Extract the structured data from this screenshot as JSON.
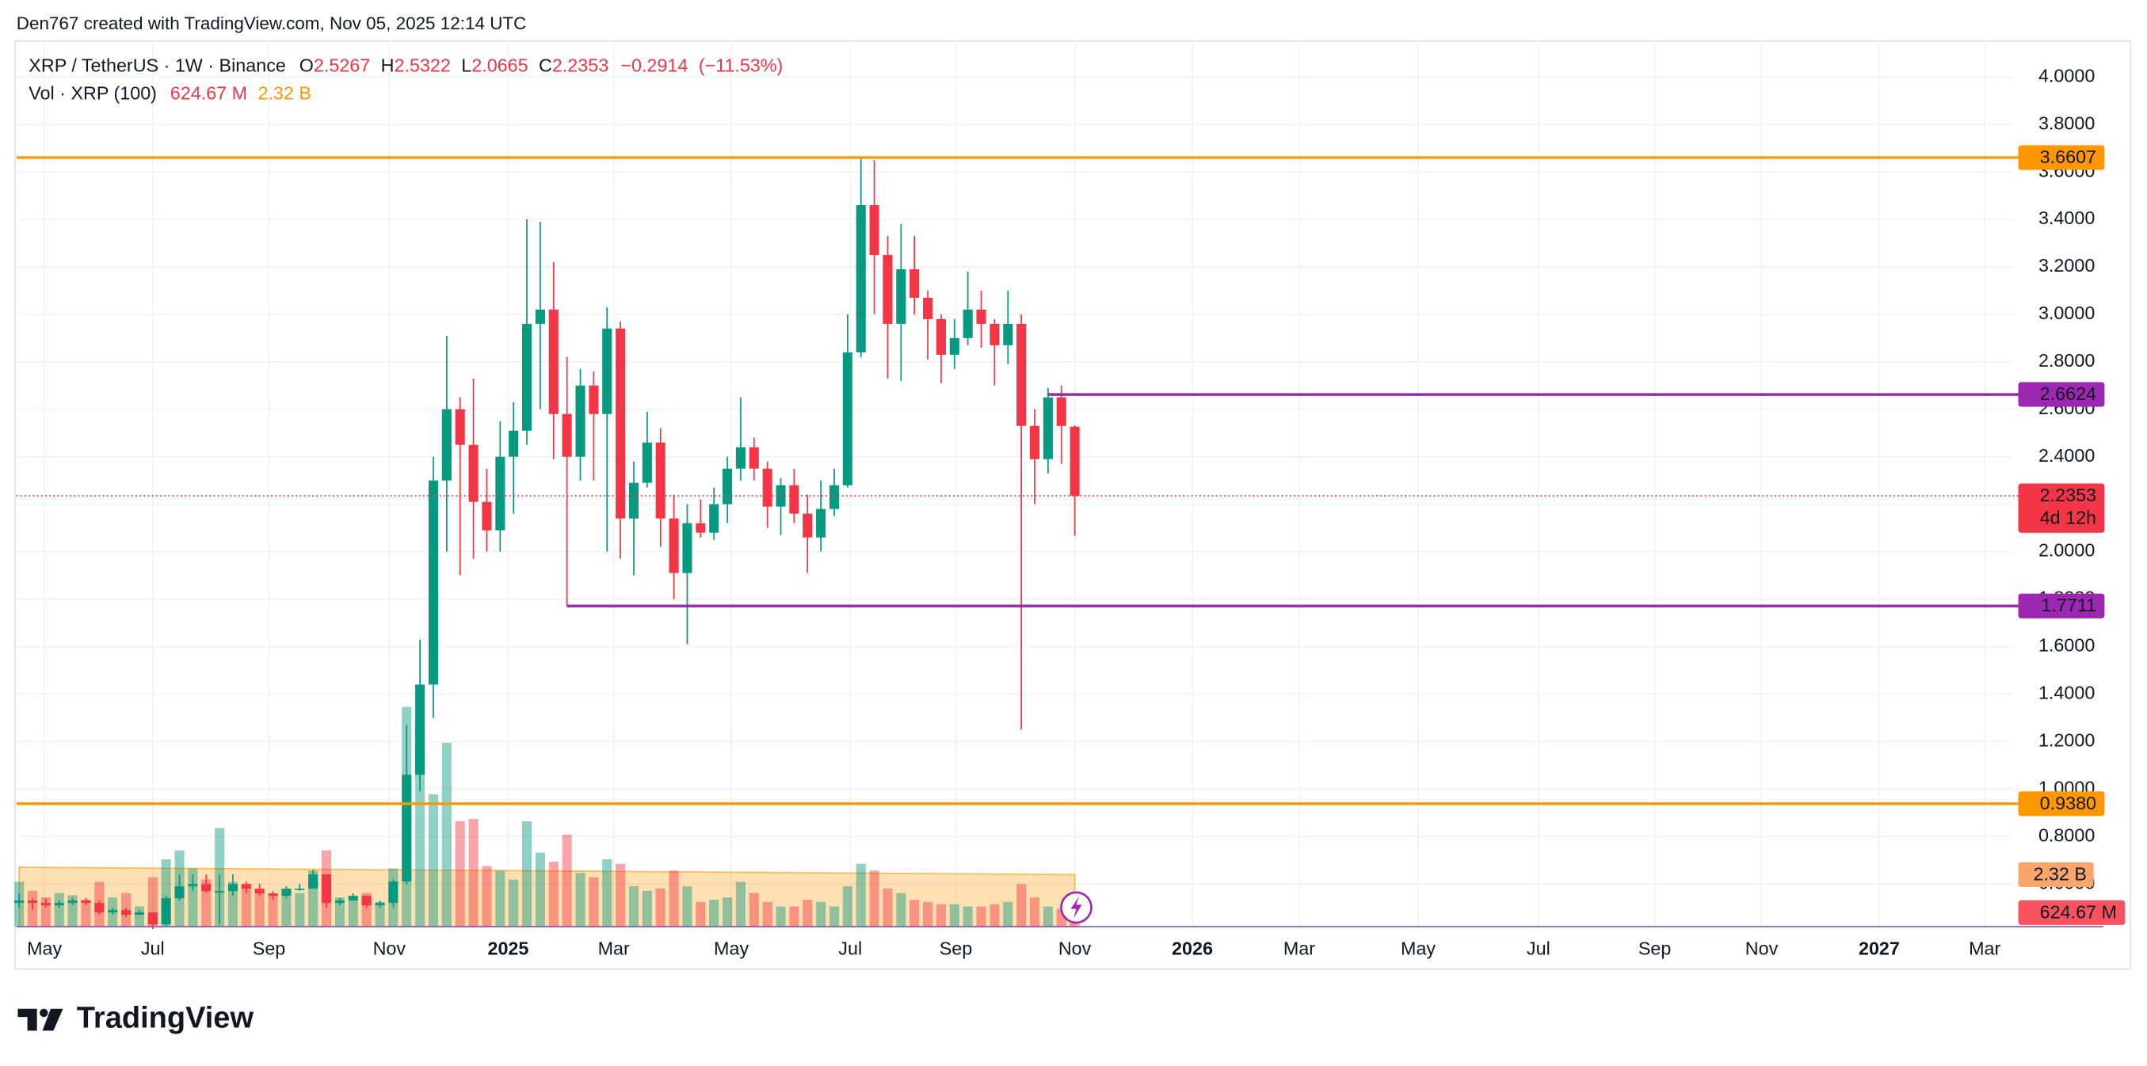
{
  "header": "Den767 created with TradingView.com, Nov 05, 2025 12:14 UTC",
  "brand": "TradingView",
  "chart_data": {
    "type": "candlestick",
    "title": "XRP / TetherUS · 1W · Binance",
    "ohlc_keys": [
      "O",
      "H",
      "L",
      "C"
    ],
    "change": {
      "value": -0.2914,
      "label": "−0.2914"
    },
    "change_pct": {
      "value": -11.53,
      "label": "(−11.53%)"
    },
    "countdown": "4d 12h",
    "up_color": "#089981",
    "down_color": "#f23645",
    "xlim": [
      -0.2,
      149.2
    ],
    "xticks": [
      {
        "value": 1.9,
        "label": "May"
      },
      {
        "value": 10,
        "label": "Jul"
      },
      {
        "value": 18.7,
        "label": "Sep"
      },
      {
        "value": 27.7,
        "label": "Nov"
      },
      {
        "value": 36.6,
        "label": "2025"
      },
      {
        "value": 44.5,
        "label": "Mar"
      },
      {
        "value": 53.3,
        "label": "May"
      },
      {
        "value": 62.2,
        "label": "Jul"
      },
      {
        "value": 70.1,
        "label": "Sep"
      },
      {
        "value": 79,
        "label": "Nov"
      },
      {
        "value": 87.8,
        "label": "2026"
      },
      {
        "value": 95.8,
        "label": "Mar"
      },
      {
        "value": 104.7,
        "label": "May"
      },
      {
        "value": 113.7,
        "label": "Jul"
      },
      {
        "value": 122.4,
        "label": "Sep"
      },
      {
        "value": 130.4,
        "label": "Nov"
      },
      {
        "value": 139.2,
        "label": "2027"
      },
      {
        "value": 147.1,
        "label": "Mar"
      }
    ],
    "ylim": [
      0.42,
      4.14
    ],
    "yticks": [
      {
        "value": 4,
        "label": "4.0000"
      },
      {
        "value": 3.8,
        "label": "3.8000"
      },
      {
        "value": 3.6,
        "label": "3.6000"
      },
      {
        "value": 3.4,
        "label": "3.4000"
      },
      {
        "value": 3.2,
        "label": "3.2000"
      },
      {
        "value": 3,
        "label": "3.0000"
      },
      {
        "value": 2.8,
        "label": "2.8000"
      },
      {
        "value": 2.6,
        "label": "2.6000"
      },
      {
        "value": 2.4,
        "label": "2.4000"
      },
      {
        "value": 2.2,
        "label": "2.2000"
      },
      {
        "value": 2,
        "label": "2.0000"
      },
      {
        "value": 1.8,
        "label": "1.8000"
      },
      {
        "value": 1.6,
        "label": "1.6000"
      },
      {
        "value": 1.4,
        "label": "1.4000"
      },
      {
        "value": 1.2,
        "label": "1.2000"
      },
      {
        "value": 1,
        "label": "1.0000"
      },
      {
        "value": 0.8,
        "label": "0.8000"
      },
      {
        "value": 0.6,
        "label": "0.6000"
      }
    ],
    "grid": true,
    "open": [
      0.52,
      0.53,
      0.52,
      0.51,
      0.52,
      0.53,
      0.52,
      0.48,
      0.49,
      0.47,
      0.48,
      0.43,
      0.54,
      0.59,
      0.6,
      0.57,
      0.57,
      0.6,
      0.58,
      0.56,
      0.55,
      0.58,
      0.58,
      0.64,
      0.52,
      0.53,
      0.55,
      0.51,
      0.52,
      0.61,
      1.06,
      1.44,
      2.3,
      2.6,
      2.45,
      2.21,
      2.09,
      2.4,
      2.51,
      2.96,
      3.02,
      2.58,
      2.4,
      2.7,
      2.58,
      2.94,
      2.14,
      2.29,
      2.46,
      2.14,
      1.91,
      2.12,
      2.08,
      2.2,
      2.35,
      2.44,
      2.35,
      2.19,
      2.28,
      2.16,
      2.06,
      2.18,
      2.28,
      2.84,
      3.46,
      3.25,
      2.96,
      3.19,
      3.07,
      2.98,
      2.83,
      2.9,
      3.02,
      2.96,
      2.87,
      2.96,
      2.53,
      2.39,
      2.65,
      2.5267
    ],
    "high": [
      0.56,
      0.54,
      0.54,
      0.53,
      0.54,
      0.54,
      0.53,
      0.5,
      0.5,
      0.49,
      0.48,
      0.55,
      0.64,
      0.64,
      0.64,
      0.64,
      0.64,
      0.61,
      0.6,
      0.57,
      0.59,
      0.6,
      0.66,
      0.64,
      0.54,
      0.56,
      0.55,
      0.53,
      0.62,
      1.27,
      1.63,
      2.4,
      2.91,
      2.65,
      2.73,
      2.35,
      2.55,
      2.63,
      3.4,
      3.39,
      3.22,
      2.82,
      2.77,
      2.76,
      3.03,
      2.97,
      2.38,
      2.59,
      2.52,
      2.24,
      2.2,
      2.22,
      2.27,
      2.4,
      2.65,
      2.48,
      2.38,
      2.31,
      2.35,
      2.24,
      2.3,
      2.35,
      3.0,
      3.66,
      3.65,
      3.33,
      3.38,
      3.33,
      3.1,
      3.0,
      2.98,
      3.18,
      3.1,
      2.98,
      3.1,
      3.0,
      2.6,
      2.69,
      2.7,
      2.5322
    ],
    "low": [
      0.5,
      0.49,
      0.5,
      0.5,
      0.51,
      0.51,
      0.47,
      0.47,
      0.46,
      0.47,
      0.41,
      0.42,
      0.53,
      0.57,
      0.56,
      0.43,
      0.55,
      0.56,
      0.55,
      0.53,
      0.54,
      0.57,
      0.58,
      0.5,
      0.51,
      0.53,
      0.5,
      0.5,
      0.5,
      0.6,
      0.99,
      1.3,
      2.0,
      1.9,
      1.97,
      2.0,
      2.0,
      2.16,
      2.45,
      2.6,
      2.39,
      1.77,
      2.3,
      2.3,
      2.0,
      1.97,
      1.9,
      2.27,
      2.02,
      1.8,
      1.61,
      2.06,
      2.05,
      2.12,
      2.3,
      2.3,
      2.1,
      2.07,
      2.12,
      1.91,
      2.0,
      2.15,
      2.27,
      2.82,
      3.0,
      2.73,
      2.72,
      3.0,
      2.81,
      2.71,
      2.77,
      2.87,
      2.86,
      2.7,
      2.79,
      1.25,
      2.2,
      2.33,
      2.37,
      2.0665
    ],
    "close": [
      0.53,
      0.52,
      0.51,
      0.52,
      0.53,
      0.52,
      0.48,
      0.49,
      0.47,
      0.48,
      0.43,
      0.54,
      0.59,
      0.6,
      0.57,
      0.57,
      0.6,
      0.58,
      0.56,
      0.55,
      0.58,
      0.58,
      0.64,
      0.52,
      0.53,
      0.55,
      0.51,
      0.52,
      0.61,
      1.06,
      1.44,
      2.3,
      2.6,
      2.45,
      2.21,
      2.09,
      2.4,
      2.51,
      2.96,
      3.02,
      2.58,
      2.4,
      2.7,
      2.58,
      2.94,
      2.14,
      2.29,
      2.46,
      2.14,
      1.91,
      2.12,
      2.08,
      2.2,
      2.35,
      2.44,
      2.35,
      2.19,
      2.28,
      2.16,
      2.06,
      2.18,
      2.28,
      2.84,
      3.46,
      3.25,
      2.96,
      3.19,
      3.07,
      2.98,
      2.83,
      2.9,
      3.02,
      2.96,
      2.87,
      2.96,
      2.53,
      2.39,
      2.65,
      2.53,
      2.2353
    ],
    "hlines": [
      {
        "value": 3.6607,
        "color": "#ff9800",
        "text_color": "#131722"
      },
      {
        "value": 2.6624,
        "color": "#9c27b0",
        "text_color": "#ffffff",
        "from": 77
      },
      {
        "value": 1.7711,
        "color": "#9c27b0",
        "text_color": "#ffffff",
        "from": 41
      },
      {
        "value": 0.938,
        "label": "0.9380",
        "color": "#ff9800",
        "text_color": "#131722"
      }
    ],
    "volume": {
      "name": "Vol · XRP (100)",
      "ylim": [
        0,
        18000
      ],
      "values": [
        2000,
        1600,
        1300,
        1500,
        1400,
        1200,
        2000,
        1300,
        1500,
        900,
        2200,
        3000,
        3400,
        2600,
        2100,
        4400,
        2000,
        1700,
        1600,
        1400,
        1600,
        1500,
        2500,
        3400,
        1300,
        1200,
        1500,
        1100,
        2600,
        9800,
        9000,
        5900,
        8200,
        4700,
        4800,
        2700,
        2500,
        2100,
        4700,
        3300,
        2900,
        4100,
        2400,
        2200,
        3000,
        2800,
        1800,
        1600,
        1700,
        2500,
        1800,
        1100,
        1200,
        1300,
        2000,
        1500,
        1100,
        900,
        900,
        1200,
        1100,
        900,
        1800,
        2800,
        2500,
        1700,
        1500,
        1200,
        1100,
        1000,
        1000,
        900,
        900,
        1000,
        1100,
        1900,
        1300,
        900,
        800,
        624.67
      ],
      "last_label": "624.67 M",
      "ma": [
        2650,
        2646,
        2642,
        2637,
        2633,
        2629,
        2625,
        2621,
        2617,
        2612,
        2608,
        2604,
        2600,
        2596,
        2591,
        2587,
        2583,
        2579,
        2575,
        2571,
        2566,
        2562,
        2558,
        2554,
        2550,
        2545,
        2541,
        2537,
        2533,
        2529,
        2525,
        2520,
        2516,
        2512,
        2508,
        2504,
        2499,
        2495,
        2491,
        2487,
        2483,
        2479,
        2474,
        2470,
        2466,
        2462,
        2458,
        2453,
        2449,
        2445,
        2441,
        2437,
        2433,
        2428,
        2424,
        2420,
        2416,
        2412,
        2407,
        2403,
        2399,
        2395,
        2391,
        2387,
        2382,
        2378,
        2374,
        2370,
        2366,
        2361,
        2357,
        2353,
        2349,
        2345,
        2341,
        2336,
        2332,
        2328,
        2324,
        2320
      ],
      "ma_last_label": "2.32 B",
      "ma_color": "#ff9800"
    }
  }
}
